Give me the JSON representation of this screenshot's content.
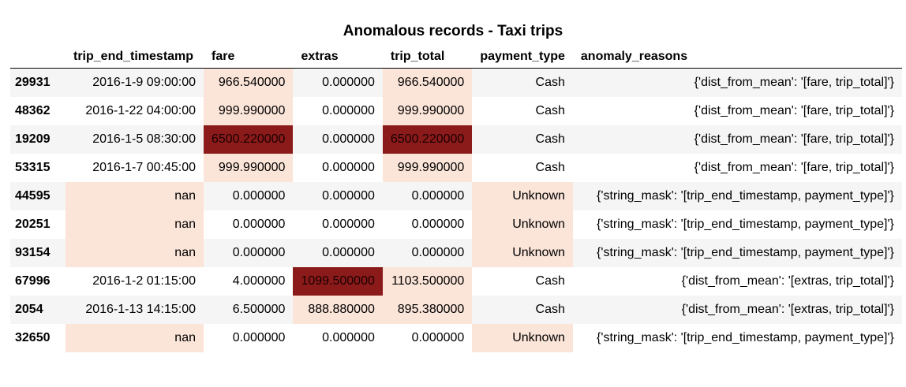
{
  "title": "Anomalous records - Taxi trips",
  "columns": [
    "",
    "trip_end_timestamp",
    "fare",
    "extras",
    "trip_total",
    "payment_type",
    "anomaly_reasons"
  ],
  "colors": {
    "highlight_light": "#fbe4d8",
    "highlight_dark": "#8b1a1a",
    "row_stripe": "#f5f5f5"
  },
  "rows": [
    {
      "index": "29931",
      "trip_end_timestamp": "2016-1-9 09:00:00",
      "fare": "966.540000",
      "extras": "0.000000",
      "trip_total": "966.540000",
      "payment_type": "Cash",
      "anomaly_reasons": "{'dist_from_mean': '[fare, trip_total]'}"
    },
    {
      "index": "48362",
      "trip_end_timestamp": "2016-1-22 04:00:00",
      "fare": "999.990000",
      "extras": "0.000000",
      "trip_total": "999.990000",
      "payment_type": "Cash",
      "anomaly_reasons": "{'dist_from_mean': '[fare, trip_total]'}"
    },
    {
      "index": "19209",
      "trip_end_timestamp": "2016-1-5 08:30:00",
      "fare": "6500.220000",
      "extras": "0.000000",
      "trip_total": "6500.220000",
      "payment_type": "Cash",
      "anomaly_reasons": "{'dist_from_mean': '[fare, trip_total]'}"
    },
    {
      "index": "53315",
      "trip_end_timestamp": "2016-1-7 00:45:00",
      "fare": "999.990000",
      "extras": "0.000000",
      "trip_total": "999.990000",
      "payment_type": "Cash",
      "anomaly_reasons": "{'dist_from_mean': '[fare, trip_total]'}"
    },
    {
      "index": "44595",
      "trip_end_timestamp": "nan",
      "fare": "0.000000",
      "extras": "0.000000",
      "trip_total": "0.000000",
      "payment_type": "Unknown",
      "anomaly_reasons": "{'string_mask': '[trip_end_timestamp, payment_type]'}"
    },
    {
      "index": "20251",
      "trip_end_timestamp": "nan",
      "fare": "0.000000",
      "extras": "0.000000",
      "trip_total": "0.000000",
      "payment_type": "Unknown",
      "anomaly_reasons": "{'string_mask': '[trip_end_timestamp, payment_type]'}"
    },
    {
      "index": "93154",
      "trip_end_timestamp": "nan",
      "fare": "0.000000",
      "extras": "0.000000",
      "trip_total": "0.000000",
      "payment_type": "Unknown",
      "anomaly_reasons": "{'string_mask': '[trip_end_timestamp, payment_type]'}"
    },
    {
      "index": "67996",
      "trip_end_timestamp": "2016-1-2 01:15:00",
      "fare": "4.000000",
      "extras": "1099.500000",
      "trip_total": "1103.500000",
      "payment_type": "Cash",
      "anomaly_reasons": "{'dist_from_mean': '[extras, trip_total]'}"
    },
    {
      "index": "2054",
      "trip_end_timestamp": "2016-1-13 14:15:00",
      "fare": "6.500000",
      "extras": "888.880000",
      "trip_total": "895.380000",
      "payment_type": "Cash",
      "anomaly_reasons": "{'dist_from_mean': '[extras, trip_total]'}"
    },
    {
      "index": "32650",
      "trip_end_timestamp": "nan",
      "fare": "0.000000",
      "extras": "0.000000",
      "trip_total": "0.000000",
      "payment_type": "Unknown",
      "anomaly_reasons": "{'string_mask': '[trip_end_timestamp, payment_type]'}"
    }
  ],
  "highlights": [
    {
      "trip_end_timestamp": "",
      "fare": "light",
      "extras": "",
      "trip_total": "light",
      "payment_type": ""
    },
    {
      "trip_end_timestamp": "",
      "fare": "light",
      "extras": "",
      "trip_total": "light",
      "payment_type": ""
    },
    {
      "trip_end_timestamp": "",
      "fare": "dark",
      "extras": "",
      "trip_total": "dark",
      "payment_type": ""
    },
    {
      "trip_end_timestamp": "",
      "fare": "light",
      "extras": "",
      "trip_total": "light",
      "payment_type": ""
    },
    {
      "trip_end_timestamp": "light",
      "fare": "",
      "extras": "",
      "trip_total": "",
      "payment_type": "light"
    },
    {
      "trip_end_timestamp": "light",
      "fare": "",
      "extras": "",
      "trip_total": "",
      "payment_type": "light"
    },
    {
      "trip_end_timestamp": "light",
      "fare": "",
      "extras": "",
      "trip_total": "",
      "payment_type": "light"
    },
    {
      "trip_end_timestamp": "",
      "fare": "",
      "extras": "dark",
      "trip_total": "light",
      "payment_type": ""
    },
    {
      "trip_end_timestamp": "",
      "fare": "",
      "extras": "light",
      "trip_total": "light",
      "payment_type": ""
    },
    {
      "trip_end_timestamp": "light",
      "fare": "",
      "extras": "",
      "trip_total": "",
      "payment_type": "light"
    }
  ]
}
